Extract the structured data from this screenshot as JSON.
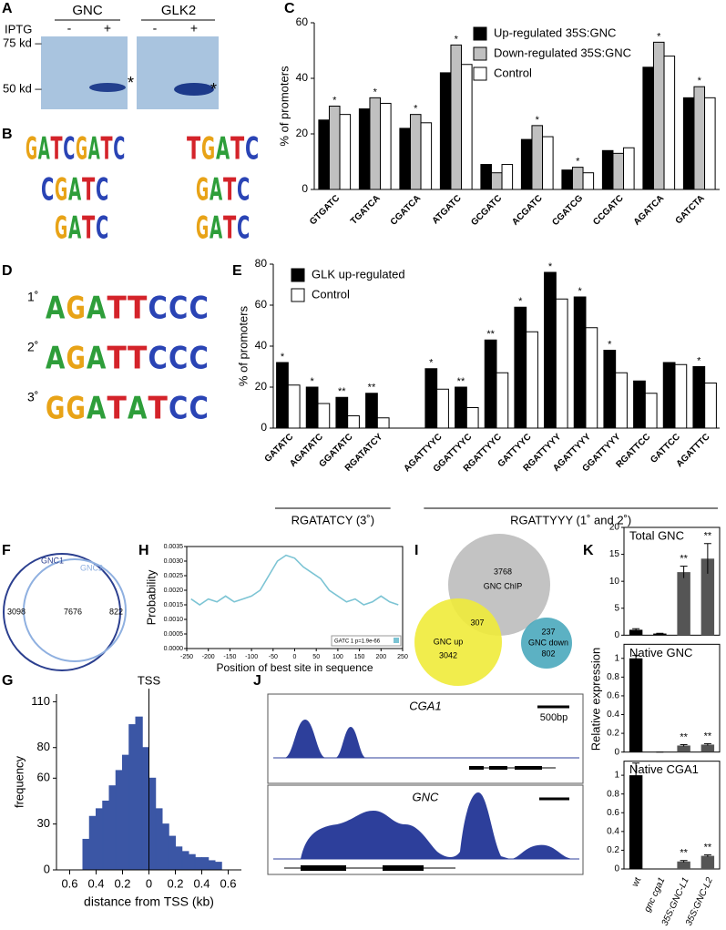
{
  "panel_labels": [
    "A",
    "B",
    "C",
    "D",
    "E",
    "F",
    "G",
    "H",
    "I",
    "J",
    "K"
  ],
  "gel": {
    "proteins": [
      "GNC",
      "GLK2"
    ],
    "treatment": "IPTG",
    "lanes": [
      "-",
      "+",
      "-",
      "+"
    ],
    "markers": [
      "75 kd –",
      "50 kd –"
    ],
    "stars": [
      "*",
      "*"
    ]
  },
  "logos_b": [
    "GATCGATC",
    "CGATC",
    "GATC",
    "TGATC",
    "GATC",
    "GATC"
  ],
  "logos_d": {
    "labels": [
      "1˚",
      "2˚",
      "3˚"
    ],
    "motifs": [
      "AGATTCCC",
      "AGATTCCC",
      "GGATATCC"
    ]
  },
  "venn_f": {
    "sets": [
      "GNC1",
      "GNC2"
    ],
    "counts": [
      3098,
      7676,
      822
    ]
  },
  "venn_i": {
    "sets": [
      "GNC ChIP",
      "GNC up",
      "GNC down"
    ],
    "counts": [
      3768,
      307,
      3042,
      237,
      802
    ]
  },
  "tracks": {
    "genes": [
      "CGA1",
      "GNC"
    ],
    "scale": "500bp"
  },
  "chart_data": [
    {
      "type": "grouped-bar",
      "ylabel": "% of promoters",
      "legend": "upper right",
      "categories": [
        "GTGATC",
        "TGATCA",
        "CGATCA",
        "ATGATC",
        "GCGATC",
        "ACGATC",
        "CGATCG",
        "CCGATC",
        "AGATCA",
        "GATCTA"
      ],
      "series": [
        {
          "name": "Up-regulated 35S:GNC",
          "color": "#000000",
          "values": [
            25,
            29,
            22,
            42,
            9,
            18,
            7,
            14,
            44,
            33
          ]
        },
        {
          "name": "Down-regulated 35S:GNC",
          "color": "#c0c0c0",
          "values": [
            30,
            33,
            27,
            52,
            6,
            23,
            8,
            13,
            53,
            37
          ]
        },
        {
          "name": "Control",
          "color": "#ffffff",
          "values": [
            27,
            31,
            24,
            45,
            9,
            19,
            6,
            15,
            48,
            33
          ]
        }
      ],
      "annotations": [
        "*",
        "*",
        "*",
        "*",
        null,
        "*",
        "*",
        null,
        "*",
        "*"
      ],
      "ylim": [
        0,
        60
      ],
      "yticks": [
        0,
        20,
        40,
        60
      ]
    },
    {
      "type": "grouped-bar",
      "ylabel": "% of promoters",
      "legend": "upper left",
      "categories": [
        "GATATC",
        "AGATATC",
        "GGATATC",
        "RGATATCY",
        null,
        "AGATTYYC",
        "GGATTYYC",
        "RGATTYYC",
        "GATTYYC",
        "RGATTYYY",
        "AGATTYYY",
        "GGATTYYY",
        "RGATTCC",
        "GATTCC",
        "AGATTTC"
      ],
      "series": [
        {
          "name": "GLK up-regulated",
          "color": "#000000",
          "values": [
            32,
            20,
            15,
            17,
            null,
            29,
            20,
            43,
            59,
            76,
            64,
            38,
            23,
            32,
            30
          ]
        },
        {
          "name": "Control",
          "color": "#ffffff",
          "values": [
            21,
            12,
            6,
            5,
            null,
            19,
            10,
            27,
            47,
            63,
            49,
            27,
            17,
            31,
            22
          ]
        }
      ],
      "annotations": [
        "*",
        "*",
        "**",
        "**",
        null,
        "*",
        "**",
        "**",
        "*",
        "*",
        "*",
        "*",
        null,
        null,
        "*"
      ],
      "groups": [
        "RGATATCY (3˚)",
        "RGATTYYY (1˚ and 2˚)"
      ],
      "ylim": [
        0,
        80
      ],
      "yticks": [
        0,
        20,
        40,
        60,
        80
      ]
    },
    {
      "type": "histogram",
      "xlabel": "distance from TSS (kb)",
      "ylabel": "frequency",
      "color": "#3b56a5",
      "bins": [
        -0.5,
        -0.45,
        -0.4,
        -0.35,
        -0.3,
        -0.25,
        -0.2,
        -0.15,
        -0.1,
        -0.05,
        0,
        0.05,
        0.1,
        0.15,
        0.2,
        0.25,
        0.3,
        0.35,
        0.4,
        0.45,
        0.5,
        0.55
      ],
      "counts": [
        20,
        35,
        40,
        45,
        55,
        65,
        75,
        95,
        100,
        80,
        60,
        40,
        30,
        22,
        15,
        12,
        10,
        8,
        8,
        6,
        5
      ],
      "annotations": [
        {
          "x": 0,
          "text": "TSS"
        }
      ],
      "xlim": [
        -0.7,
        0.7
      ],
      "xticks": [
        {
          "value": -0.6,
          "label": "0.6"
        },
        {
          "value": -0.4,
          "label": "0.4"
        },
        {
          "value": -0.2,
          "label": "0.2"
        },
        0,
        0.2,
        0.4,
        0.6
      ],
      "ylim": [
        0,
        115
      ],
      "yticks": [
        0,
        30,
        60,
        80,
        110
      ]
    },
    {
      "type": "line",
      "xlabel": "Position of best site in sequence",
      "ylabel": "Probability",
      "x": [
        -240,
        -220,
        -200,
        -180,
        -160,
        -140,
        -120,
        -100,
        -80,
        -60,
        -40,
        -20,
        0,
        20,
        40,
        60,
        80,
        100,
        120,
        140,
        160,
        180,
        200,
        220,
        240
      ],
      "series": [
        {
          "name": "GATC 1 p=1.9e-66",
          "color": "#7cc4d4",
          "values": [
            0.0017,
            0.0015,
            0.0017,
            0.0016,
            0.0018,
            0.0016,
            0.0017,
            0.0018,
            0.002,
            0.0025,
            0.003,
            0.0032,
            0.0031,
            0.0028,
            0.0026,
            0.0024,
            0.002,
            0.0018,
            0.0016,
            0.0017,
            0.0015,
            0.0016,
            0.0018,
            0.0016,
            0.0015
          ]
        }
      ],
      "xlim": [
        -250,
        250
      ],
      "xticks": [
        -250,
        -200,
        -150,
        -100,
        -50,
        0,
        50,
        100,
        150,
        200,
        250
      ],
      "ylim": [
        0,
        0.0035
      ],
      "yticks": [
        {
          "value": 0,
          "label": "0.0000"
        },
        0.0005,
        {
          "value": 0.001,
          "label": "0.0010"
        },
        0.0015,
        {
          "value": 0.002,
          "label": "0.0020"
        },
        0.0025,
        {
          "value": 0.003,
          "label": "0.0030"
        },
        0.0035
      ]
    },
    {
      "type": "bar-panels",
      "ylabel": "Relative expression",
      "categories": [
        "wt",
        "gnc cga1",
        "35S:GNC-L1",
        "35S:GNC-L2"
      ],
      "colors": [
        "#000000",
        "#000000",
        "#555555",
        "#555555"
      ],
      "panels": [
        {
          "title": "Total GNC",
          "values": [
            1,
            0.3,
            11.7,
            14.2
          ],
          "errors": [
            0.2,
            0.05,
            1.1,
            2.8
          ],
          "annotations": [
            null,
            null,
            "**",
            "**"
          ],
          "ylim": [
            0,
            20
          ],
          "yticks": [
            0,
            5,
            10,
            15,
            20
          ]
        },
        {
          "title": "Native GNC",
          "values": [
            1,
            0,
            0.07,
            0.08
          ],
          "errors": [
            0.03,
            0,
            0.01,
            0.01
          ],
          "annotations": [
            null,
            null,
            "**",
            "**"
          ],
          "ylim": [
            0,
            1.15
          ],
          "yticks": [
            0,
            0.2,
            0.4,
            0.6,
            0.8,
            1
          ]
        },
        {
          "title": "Native CGA1",
          "values": [
            1,
            0,
            0.08,
            0.14
          ],
          "errors": [
            0.13,
            0,
            0.01,
            0.01
          ],
          "annotations": [
            null,
            null,
            "**",
            "**"
          ],
          "ylim": [
            0,
            1.15
          ],
          "yticks": [
            0,
            0.2,
            0.4,
            0.6,
            0.8,
            1
          ]
        }
      ]
    }
  ]
}
